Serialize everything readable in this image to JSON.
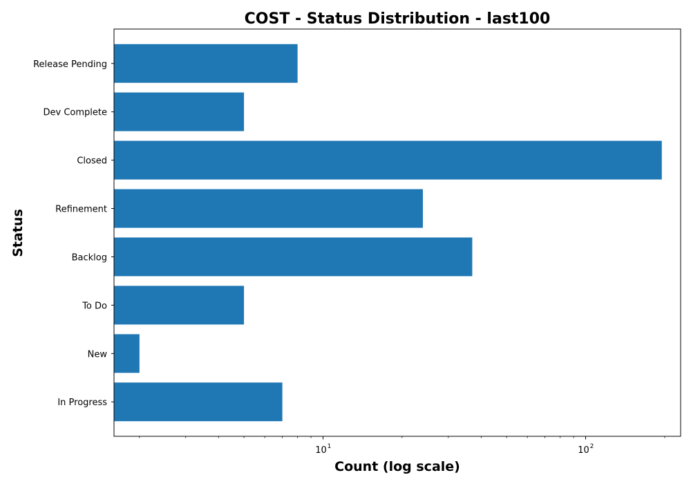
{
  "chart_data": {
    "type": "bar",
    "orientation": "horizontal",
    "title": "COST - Status Distribution - last100",
    "xlabel": "Count (log scale)",
    "ylabel": "Status",
    "x_scale": "log",
    "xlim": [
      1.6,
      230
    ],
    "categories": [
      "In Progress",
      "New",
      "To Do",
      "Backlog",
      "Refinement",
      "Closed",
      "Dev Complete",
      "Release Pending"
    ],
    "values": [
      7,
      2,
      5,
      37,
      24,
      195,
      5,
      8
    ],
    "x_major_ticks": [
      {
        "value": 10,
        "base": "10",
        "exp": "1"
      },
      {
        "value": 100,
        "base": "10",
        "exp": "2"
      }
    ],
    "bar_color": "#1f77b4",
    "grid": false,
    "legend": "none"
  }
}
